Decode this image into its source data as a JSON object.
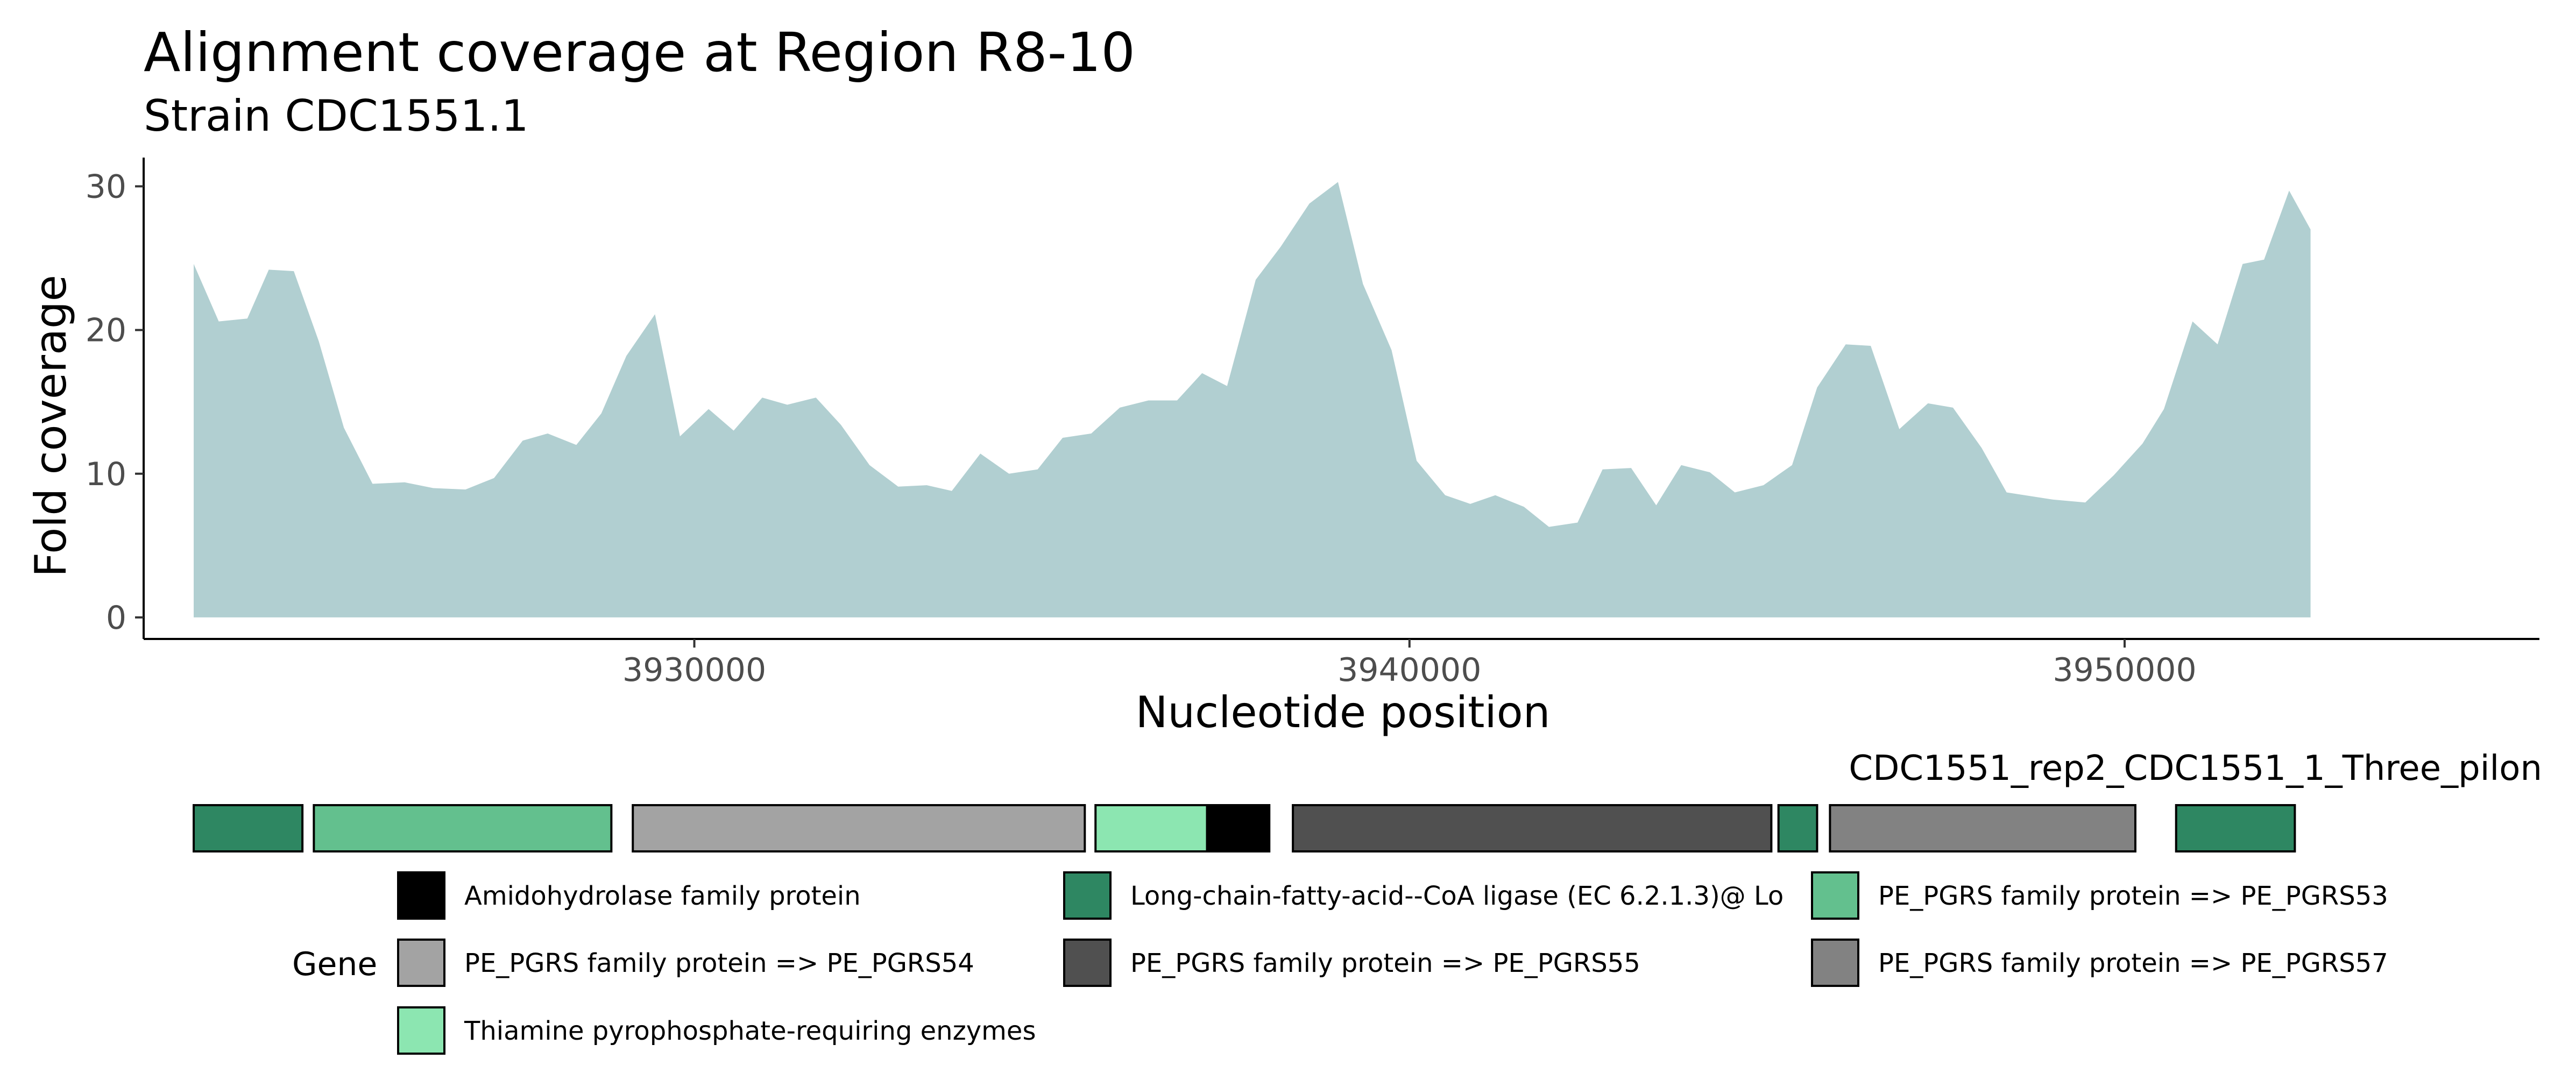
{
  "chart_data": {
    "type": "area",
    "title": "Alignment coverage at Region R8-10",
    "subtitle": "Strain CDC1551.1",
    "xlabel": "Nucleotide position",
    "ylabel": "Fold coverage",
    "xlim": [
      3922300,
      3955800
    ],
    "ylim": [
      -1.5,
      32
    ],
    "x_ticks": [
      3930000,
      3940000,
      3950000
    ],
    "x_tick_labels": [
      "3930000",
      "3940000",
      "3950000"
    ],
    "y_ticks": [
      0,
      10,
      20,
      30
    ],
    "y_tick_labels": [
      "0",
      "10",
      "20",
      "30"
    ],
    "fill_color": "#b1cfd1",
    "grid": false,
    "series": [
      {
        "x": [
          3923000,
          3923350,
          3923750,
          3924050,
          3924400,
          3924750,
          3925100,
          3925500,
          3925950,
          3926350,
          3926800,
          3927200,
          3927600,
          3927950,
          3928350,
          3928700,
          3929050,
          3929450,
          3929800,
          3930200,
          3930550,
          3930950,
          3931300,
          3931700,
          3932050,
          3932450,
          3932850,
          3933250,
          3933600,
          3934000,
          3934400,
          3934800,
          3935150,
          3935550,
          3935950,
          3936350,
          3936750,
          3937100,
          3937450,
          3937850,
          3938200,
          3938600,
          3939000,
          3939350,
          3939750,
          3940100,
          3940500,
          3940850,
          3941200,
          3941600,
          3941950,
          3942350,
          3942700,
          3943100,
          3943450,
          3943800,
          3944200,
          3944550,
          3944950,
          3945350,
          3945700,
          3946100,
          3946450,
          3946850,
          3947250,
          3947600,
          3948000,
          3948350,
          3949000,
          3949450,
          3949850,
          3950250,
          3950550,
          3950950,
          3951300,
          3951650,
          3951950,
          3952300,
          3952600
        ],
        "y": [
          24.6,
          20.6,
          20.8,
          24.2,
          24.1,
          19.2,
          13.2,
          9.3,
          9.4,
          9.0,
          8.9,
          9.7,
          12.3,
          12.8,
          12.0,
          14.2,
          18.2,
          21.1,
          12.6,
          14.5,
          13.0,
          15.3,
          14.8,
          15.3,
          13.4,
          10.6,
          9.1,
          9.2,
          8.8,
          11.4,
          10.0,
          10.3,
          12.5,
          12.8,
          14.6,
          15.1,
          15.1,
          17.0,
          16.1,
          23.5,
          25.8,
          28.8,
          30.3,
          23.2,
          18.6,
          10.9,
          8.5,
          7.9,
          8.5,
          7.7,
          6.3,
          6.6,
          10.3,
          10.4,
          7.8,
          10.6,
          10.1,
          8.7,
          9.2,
          10.6,
          16.0,
          19.0,
          18.9,
          13.1,
          14.9,
          14.6,
          11.8,
          8.7,
          8.2,
          8.0,
          9.9,
          12.1,
          14.5,
          20.6,
          19.0,
          24.6,
          24.9,
          29.7,
          27.0
        ]
      }
    ],
    "track": {
      "label": "CDC1551_rep2_CDC1551_1_Three_pilon",
      "genes": [
        {
          "start": 3923000,
          "end": 3924520,
          "gene": "Long-chain-fatty-acid--CoA ligase (EC 6.2.1.3)@ Lo"
        },
        {
          "start": 3924680,
          "end": 3928840,
          "gene": "PE_PGRS family protein => PE_PGRS53"
        },
        {
          "start": 3929140,
          "end": 3935460,
          "gene": "PE_PGRS family protein => PE_PGRS54"
        },
        {
          "start": 3935610,
          "end": 3937170,
          "gene": "Thiamine pyrophosphate-requiring enzymes"
        },
        {
          "start": 3937170,
          "end": 3938040,
          "gene": "Amidohydrolase family protein"
        },
        {
          "start": 3938370,
          "end": 3945060,
          "gene": "PE_PGRS family protein => PE_PGRS55"
        },
        {
          "start": 3945160,
          "end": 3945700,
          "gene": "Long-chain-fatty-acid--CoA ligase (EC 6.2.1.3)@ Lo"
        },
        {
          "start": 3945880,
          "end": 3950150,
          "gene": "PE_PGRS family protein => PE_PGRS57"
        },
        {
          "start": 3950720,
          "end": 3952380,
          "gene": "Long-chain-fatty-acid--CoA ligase (EC 6.2.1.3)@ Lo"
        }
      ]
    },
    "legend": {
      "title": "Gene",
      "placement": "bottom",
      "entries": [
        {
          "label": "Amidohydrolase family protein",
          "color": "#000000"
        },
        {
          "label": "Long-chain-fatty-acid--CoA ligase (EC 6.2.1.3)@ Lo",
          "color": "#2e8762"
        },
        {
          "label": "PE_PGRS family protein => PE_PGRS53",
          "color": "#63c08e"
        },
        {
          "label": "PE_PGRS family protein => PE_PGRS54",
          "color": "#a3a3a3"
        },
        {
          "label": "PE_PGRS family protein => PE_PGRS55",
          "color": "#505050"
        },
        {
          "label": "PE_PGRS family protein => PE_PGRS57",
          "color": "#828282"
        },
        {
          "label": "Thiamine pyrophosphate-requiring enzymes",
          "color": "#8ce6b1"
        }
      ]
    }
  }
}
